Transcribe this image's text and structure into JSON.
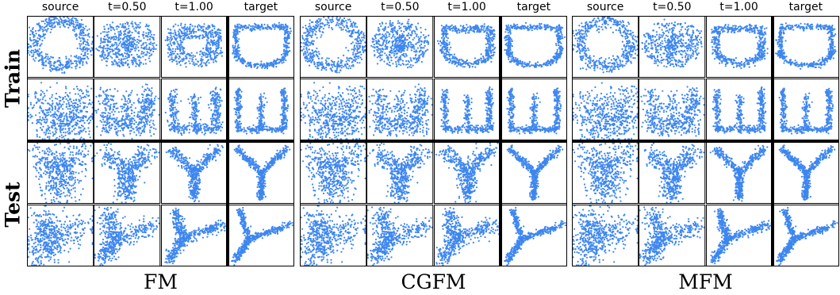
{
  "colors": {
    "points": "#3d86ef",
    "grid": "#000000"
  },
  "stage_labels": [
    "source",
    "t=0.50",
    "t=1.00",
    "target"
  ],
  "rows": [
    {
      "label": "Train",
      "examples": [
        "D",
        "E"
      ]
    },
    {
      "label": "Test",
      "examples": [
        "Y",
        "Y-tilted"
      ]
    }
  ],
  "methods": [
    {
      "name": "FM"
    },
    {
      "name": "CGFM"
    },
    {
      "name": "MFM"
    }
  ]
}
